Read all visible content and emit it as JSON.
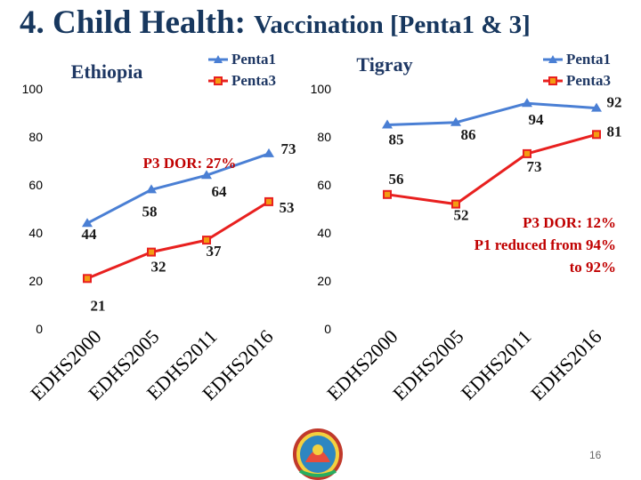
{
  "slide": {
    "title_main": "4. Child Health:",
    "title_sub": "Vaccination [Penta1 & 3]",
    "page_number": "16"
  },
  "colors": {
    "penta1": "#4a7fd4",
    "penta3": "#e8201f",
    "title": "#17375e",
    "annotation": "#c00000"
  },
  "chart_data": [
    {
      "type": "line",
      "title": "Ethiopia",
      "categories": [
        "EDHS2000",
        "EDHS2005",
        "EDHS2011",
        "EDHS2016"
      ],
      "series": [
        {
          "name": "Penta1",
          "values": [
            44,
            58,
            64,
            73
          ],
          "labels": [
            "44",
            "58",
            "64",
            "73"
          ],
          "color": "#4a7fd4",
          "marker": "triangle"
        },
        {
          "name": "Penta3",
          "values": [
            21,
            32,
            37,
            53
          ],
          "labels": [
            "21",
            "32",
            "37",
            "53"
          ],
          "color": "#e8201f",
          "marker": "square"
        }
      ],
      "y_ticks": [
        "0",
        "20",
        "40",
        "60",
        "80",
        "100"
      ],
      "ylim": [
        0,
        100
      ],
      "annotations": [
        "P3 DOR: 27%"
      ],
      "legend_position": "top-right",
      "grid": false
    },
    {
      "type": "line",
      "title": "Tigray",
      "categories": [
        "EDHS2000",
        "EDHS2005",
        "EDHS2011",
        "EDHS2016"
      ],
      "series": [
        {
          "name": "Penta1",
          "values": [
            85,
            86,
            94,
            92
          ],
          "labels": [
            "85",
            "86",
            "94",
            "92"
          ],
          "color": "#4a7fd4",
          "marker": "triangle"
        },
        {
          "name": "Penta3",
          "values": [
            56,
            52,
            73,
            81
          ],
          "labels": [
            "56",
            "52",
            "73",
            "81"
          ],
          "color": "#e8201f",
          "marker": "square"
        }
      ],
      "y_ticks": [
        "0",
        "20",
        "40",
        "60",
        "80",
        "100"
      ],
      "ylim": [
        0,
        100
      ],
      "annotations": [
        "P3 DOR: 12%",
        "P1 reduced from 94%",
        "to 92%"
      ],
      "legend_position": "top-right",
      "grid": false
    }
  ]
}
